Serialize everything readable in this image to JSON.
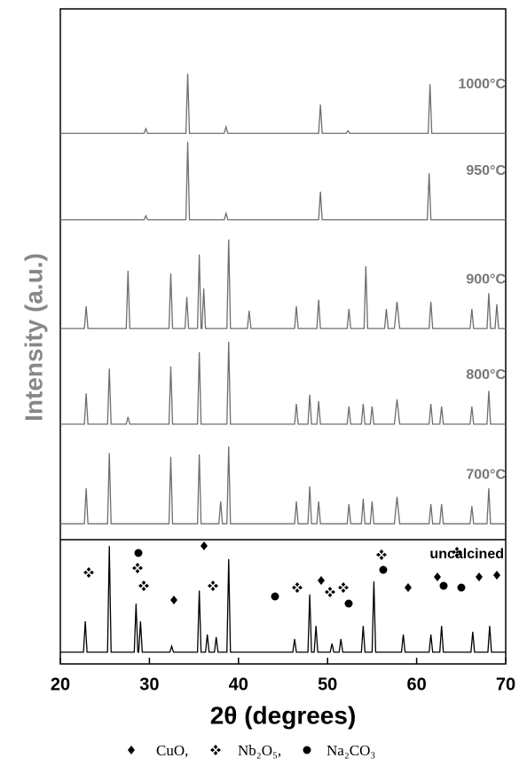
{
  "chart_data": {
    "type": "line",
    "y_label": "Intensity (a.u.)",
    "x_label": "2θ (degrees)",
    "xlim": [
      20,
      70
    ],
    "xticks": [
      20,
      30,
      40,
      50,
      60,
      70
    ],
    "ylim": [
      0,
      100
    ],
    "legend": [
      "CuO,",
      "Nb₂O₅,",
      "Na₂CO₃"
    ],
    "series": [
      {
        "name": "1000°C",
        "color": "#6e6e6e",
        "x": [
          20,
          29.4,
          29.6,
          29.8,
          34.1,
          34.3,
          34.5,
          38.4,
          38.6,
          38.8,
          49.0,
          49.2,
          49.4,
          52.1,
          52.3,
          52.5,
          61.3,
          61.5,
          61.7,
          70
        ],
        "values": [
          81.0,
          81.0,
          81.7,
          81.0,
          81.0,
          90.1,
          81.0,
          81.0,
          82.0,
          81.0,
          81.0,
          85.4,
          81.0,
          81.0,
          81.4,
          81.0,
          81.0,
          88.5,
          81.0,
          81.0
        ]
      },
      {
        "name": "950°C",
        "color": "#6e6e6e",
        "x": [
          20,
          29.4,
          29.6,
          29.8,
          34.1,
          34.3,
          34.5,
          38.4,
          38.6,
          38.8,
          49.0,
          49.2,
          49.4,
          61.2,
          61.4,
          61.6,
          70
        ],
        "values": [
          67.8,
          67.8,
          68.4,
          67.8,
          67.8,
          79.7,
          67.8,
          67.8,
          68.8,
          67.8,
          67.8,
          72.1,
          67.8,
          67.8,
          74.9,
          67.8,
          67.8
        ]
      },
      {
        "name": "900°C",
        "color": "#6e6e6e",
        "x": [
          20,
          22.7,
          22.9,
          23.1,
          27.4,
          27.6,
          27.8,
          32.2,
          32.4,
          32.6,
          34.0,
          34.2,
          34.4,
          35.4,
          35.6,
          35.8,
          35.9,
          36.1,
          36.3,
          38.7,
          38.9,
          39.1,
          41.0,
          41.2,
          41.4,
          46.3,
          46.5,
          46.7,
          48.8,
          49.0,
          49.2,
          52.2,
          52.4,
          52.6,
          54.1,
          54.3,
          54.5,
          56.4,
          56.6,
          56.8,
          57.5,
          57.8,
          58.1,
          61.4,
          61.6,
          61.8,
          66.0,
          66.2,
          66.4,
          67.9,
          68.1,
          68.3,
          68.8,
          69.0,
          69.2,
          70
        ],
        "values": [
          51.2,
          51.2,
          54.6,
          51.2,
          51.2,
          60.0,
          51.2,
          51.2,
          59.6,
          51.2,
          51.2,
          56.0,
          51.2,
          51.2,
          62.5,
          51.2,
          51.2,
          57.3,
          51.2,
          51.2,
          64.8,
          51.2,
          51.2,
          53.9,
          51.2,
          51.2,
          54.6,
          51.2,
          51.2,
          55.6,
          51.2,
          51.2,
          54.2,
          51.2,
          51.2,
          60.7,
          51.2,
          51.2,
          54.2,
          51.2,
          51.2,
          55.3,
          51.2,
          51.2,
          55.3,
          51.2,
          51.2,
          54.2,
          51.2,
          51.2,
          56.6,
          51.2,
          51.2,
          54.9,
          51.2,
          51.2
        ]
      },
      {
        "name": "800°C",
        "color": "#6e6e6e",
        "x": [
          20,
          22.7,
          22.9,
          23.1,
          25.3,
          25.5,
          25.7,
          27.4,
          27.6,
          27.8,
          32.2,
          32.4,
          32.6,
          35.4,
          35.6,
          35.8,
          38.7,
          38.9,
          39.1,
          46.3,
          46.5,
          46.7,
          47.8,
          48.0,
          48.2,
          48.8,
          49.0,
          49.2,
          52.2,
          52.4,
          52.6,
          53.8,
          54.0,
          54.2,
          54.8,
          55.0,
          55.2,
          57.5,
          57.8,
          58.1,
          61.4,
          61.6,
          61.8,
          62.6,
          62.8,
          63.0,
          66.0,
          66.2,
          66.4,
          67.9,
          68.1,
          68.3,
          70
        ],
        "values": [
          36.6,
          36.6,
          41.3,
          36.6,
          36.6,
          45.1,
          36.6,
          36.6,
          37.7,
          36.6,
          36.6,
          45.4,
          36.6,
          36.6,
          47.6,
          36.6,
          36.6,
          49.2,
          36.6,
          36.6,
          39.7,
          36.6,
          36.6,
          41.1,
          36.6,
          36.6,
          40.1,
          36.6,
          36.6,
          39.3,
          36.6,
          36.6,
          39.7,
          36.6,
          36.6,
          39.3,
          36.6,
          36.6,
          40.4,
          36.6,
          36.6,
          39.7,
          36.6,
          36.6,
          39.3,
          36.6,
          36.6,
          39.3,
          36.6,
          36.6,
          41.7,
          36.6,
          36.6
        ]
      },
      {
        "name": "700°C",
        "color": "#6e6e6e",
        "x": [
          20,
          22.7,
          22.9,
          23.1,
          25.3,
          25.5,
          25.7,
          32.2,
          32.4,
          32.6,
          35.4,
          35.6,
          35.8,
          37.8,
          38.0,
          38.2,
          38.7,
          38.9,
          39.1,
          46.3,
          46.5,
          46.7,
          47.8,
          48.0,
          48.2,
          48.8,
          49.0,
          49.2,
          52.2,
          52.4,
          52.6,
          53.8,
          54.0,
          54.2,
          54.8,
          55.0,
          55.2,
          57.5,
          57.8,
          58.1,
          61.4,
          61.6,
          61.8,
          62.6,
          62.8,
          63.0,
          66.0,
          66.2,
          66.4,
          67.9,
          68.1,
          68.3,
          70
        ],
        "values": [
          21.4,
          21.4,
          26.8,
          21.4,
          21.4,
          32.2,
          21.4,
          21.4,
          31.6,
          21.4,
          21.4,
          32.0,
          21.4,
          21.4,
          24.8,
          21.4,
          21.4,
          33.2,
          21.4,
          21.4,
          24.8,
          21.4,
          21.4,
          27.1,
          21.4,
          21.4,
          24.8,
          21.4,
          21.4,
          24.4,
          21.4,
          21.4,
          25.2,
          21.4,
          21.4,
          24.8,
          21.4,
          21.4,
          25.5,
          21.4,
          21.4,
          24.4,
          21.4,
          21.4,
          24.4,
          21.4,
          21.4,
          24.1,
          21.4,
          21.4,
          26.8,
          21.4,
          21.4
        ]
      },
      {
        "name": "uncalcined",
        "color": "#000000",
        "x": [
          20,
          22.6,
          22.8,
          23.0,
          25.3,
          25.5,
          25.7,
          28.3,
          28.5,
          28.7,
          28.8,
          29.0,
          29.2,
          32.3,
          32.5,
          32.7,
          35.4,
          35.6,
          35.8,
          36.3,
          36.5,
          36.7,
          37.3,
          37.5,
          37.7,
          38.7,
          38.9,
          39.1,
          46.1,
          46.3,
          46.5,
          47.8,
          48.0,
          48.2,
          48.5,
          48.7,
          48.9,
          50.3,
          50.5,
          50.7,
          51.3,
          51.5,
          51.7,
          53.8,
          54.0,
          54.2,
          55.0,
          55.2,
          55.4,
          58.3,
          58.5,
          58.7,
          61.4,
          61.6,
          61.8,
          62.6,
          62.8,
          63.0,
          66.1,
          66.3,
          66.5,
          68.0,
          68.2,
          68.4,
          70
        ],
        "values": [
          1.8,
          1.8,
          6.5,
          1.8,
          1.8,
          18.0,
          1.8,
          1.8,
          9.2,
          1.8,
          1.8,
          6.5,
          1.8,
          1.8,
          2.7,
          1.8,
          1.8,
          11.2,
          1.8,
          1.8,
          4.5,
          1.8,
          1.8,
          4.1,
          1.8,
          1.8,
          16.0,
          1.8,
          1.8,
          3.8,
          1.8,
          1.8,
          10.6,
          1.8,
          1.8,
          5.8,
          1.8,
          1.8,
          3.1,
          1.8,
          1.8,
          3.8,
          1.8,
          1.8,
          5.8,
          1.8,
          1.8,
          12.6,
          1.8,
          1.8,
          4.5,
          1.8,
          1.8,
          4.5,
          1.8,
          1.8,
          5.8,
          1.8,
          1.8,
          4.9,
          1.8,
          1.8,
          5.8,
          1.8,
          1.8
        ]
      }
    ]
  }
}
